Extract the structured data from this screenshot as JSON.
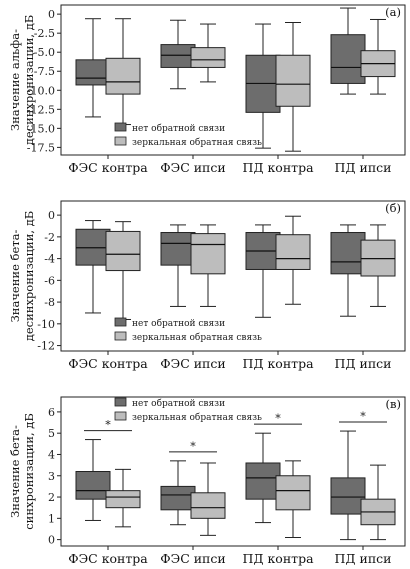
{
  "chart_data": [
    {
      "type": "box",
      "panel_label": "(а)",
      "ylabel": "Значение альфа-десинхронизации, дБ",
      "yticks": [
        0,
        -2.5,
        -5.0,
        -7.5,
        -10.0,
        -12.5,
        -15.0,
        -17.5
      ],
      "ytick_labels": [
        "0",
        "-2.5",
        "-5.0",
        "-7.5",
        "-10.0",
        "-12.5",
        "-15.0",
        "-17.5"
      ],
      "ylim": [
        -18.5,
        1.2
      ],
      "categories": [
        "ФЭС контра",
        "ФЭС ипси",
        "ПД контра",
        "ПД ипси"
      ],
      "legend": {
        "position": "bottom-left",
        "entries": [
          "нет обратной связи",
          "зеркальная обратная связь"
        ]
      },
      "series": [
        {
          "name": "нет обратной связи",
          "color": "#6d6d6d",
          "boxes": [
            {
              "min": -13.5,
              "q1": -9.3,
              "median": -8.4,
              "q3": -6.0,
              "max": -0.6
            },
            {
              "min": -9.8,
              "q1": -7.0,
              "median": -5.4,
              "q3": -4.0,
              "max": -0.8
            },
            {
              "min": -17.6,
              "q1": -12.9,
              "median": -9.1,
              "q3": -5.4,
              "max": -1.3
            },
            {
              "min": -10.5,
              "q1": -9.1,
              "median": -7.0,
              "q3": -2.7,
              "max": 0.8
            }
          ]
        },
        {
          "name": "зеркальная обратная связь",
          "color": "#bdbdbd",
          "boxes": [
            {
              "min": -14.5,
              "q1": -10.5,
              "median": -8.9,
              "q3": -5.8,
              "max": -0.6
            },
            {
              "min": -8.9,
              "q1": -7.0,
              "median": -6.0,
              "q3": -4.4,
              "max": -1.3
            },
            {
              "min": -18.0,
              "q1": -12.1,
              "median": -9.2,
              "q3": -5.4,
              "max": -1.1
            },
            {
              "min": -10.5,
              "q1": -8.2,
              "median": -6.5,
              "q3": -4.8,
              "max": -0.7
            }
          ]
        }
      ]
    },
    {
      "type": "box",
      "panel_label": "(б)",
      "ylabel": "Значение бета-десинхронизации, дБ",
      "yticks": [
        0,
        -2,
        -4,
        -6,
        -8,
        -10,
        -12
      ],
      "ytick_labels": [
        "0",
        "-2",
        "-4",
        "-6",
        "-8",
        "-10",
        "-12"
      ],
      "ylim": [
        -12.5,
        1.3
      ],
      "categories": [
        "ФЭС контра",
        "ФЭС ипси",
        "ПД контра",
        "ПД ипси"
      ],
      "legend": {
        "position": "bottom-left",
        "entries": [
          "нет обратной связи",
          "зеркальная обратная связь"
        ]
      },
      "series": [
        {
          "name": "нет обратной связи",
          "color": "#6d6d6d",
          "boxes": [
            {
              "min": -9.0,
              "q1": -4.6,
              "median": -3.0,
              "q3": -1.3,
              "max": -0.5
            },
            {
              "min": -8.4,
              "q1": -4.6,
              "median": -2.6,
              "q3": -1.6,
              "max": -0.9
            },
            {
              "min": -9.4,
              "q1": -5.0,
              "median": -3.3,
              "q3": -1.6,
              "max": -0.9
            },
            {
              "min": -9.3,
              "q1": -5.4,
              "median": -4.3,
              "q3": -1.6,
              "max": -0.9
            }
          ]
        },
        {
          "name": "зеркальная обратная связь",
          "color": "#bdbdbd",
          "boxes": [
            {
              "min": -9.6,
              "q1": -5.1,
              "median": -3.6,
              "q3": -1.5,
              "max": -0.6
            },
            {
              "min": -8.4,
              "q1": -5.4,
              "median": -2.7,
              "q3": -1.7,
              "max": -0.9
            },
            {
              "min": -8.2,
              "q1": -5.0,
              "median": -4.0,
              "q3": -1.8,
              "max": -0.1
            },
            {
              "min": -8.4,
              "q1": -5.6,
              "median": -4.0,
              "q3": -2.3,
              "max": -0.9
            }
          ]
        }
      ]
    },
    {
      "type": "box",
      "panel_label": "(в)",
      "ylabel": "Значение бета-синхронизации, дБ",
      "yticks": [
        0,
        1,
        2,
        3,
        4,
        5,
        6
      ],
      "ytick_labels": [
        "0",
        "1",
        "2",
        "3",
        "4",
        "5",
        "6"
      ],
      "ylim": [
        -0.3,
        6.7
      ],
      "categories": [
        "ФЭС контра",
        "ФЭС ипси",
        "ПД контра",
        "ПД ипси"
      ],
      "significance_marker": "*",
      "legend": {
        "position": "top",
        "entries": [
          "нет обратной связи",
          "зеркальная обратная связь"
        ]
      },
      "series": [
        {
          "name": "нет обратной связи",
          "color": "#6d6d6d",
          "boxes": [
            {
              "min": 0.9,
              "q1": 1.9,
              "median": 2.3,
              "q3": 3.2,
              "max": 4.7
            },
            {
              "min": 0.7,
              "q1": 1.4,
              "median": 2.1,
              "q3": 2.5,
              "max": 3.7
            },
            {
              "min": 0.8,
              "q1": 1.9,
              "median": 2.9,
              "q3": 3.6,
              "max": 5.0
            },
            {
              "min": 0.0,
              "q1": 1.2,
              "median": 2.0,
              "q3": 2.9,
              "max": 5.1
            }
          ]
        },
        {
          "name": "зеркальная обратная связь",
          "color": "#bdbdbd",
          "boxes": [
            {
              "min": 0.6,
              "q1": 1.5,
              "median": 2.0,
              "q3": 2.3,
              "max": 3.3
            },
            {
              "min": 0.2,
              "q1": 1.0,
              "median": 1.5,
              "q3": 2.2,
              "max": 3.6
            },
            {
              "min": 0.1,
              "q1": 1.4,
              "median": 2.3,
              "q3": 3.0,
              "max": 3.7
            },
            {
              "min": 0.0,
              "q1": 0.7,
              "median": 1.3,
              "q3": 1.9,
              "max": 3.5
            }
          ]
        }
      ]
    }
  ]
}
